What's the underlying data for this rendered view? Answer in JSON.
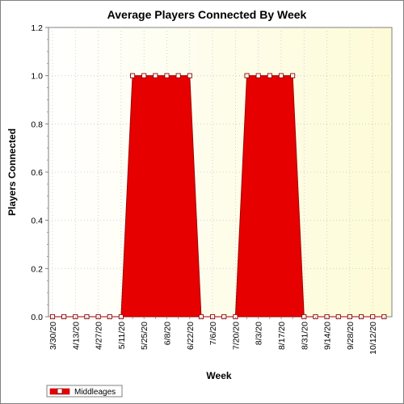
{
  "chart_data": {
    "type": "area",
    "title": "Average Players Connected By Week",
    "xlabel": "Week",
    "ylabel": "Players Connected",
    "ylim": [
      0,
      1.2
    ],
    "yticks": [
      "0.0",
      "0.2",
      "0.4",
      "0.6",
      "0.8",
      "1.0",
      "1.2"
    ],
    "x_tick_labels": [
      "3/30/20",
      "4/13/20",
      "4/27/20",
      "5/11/20",
      "5/25/20",
      "6/8/20",
      "6/22/20",
      "7/6/20",
      "7/20/20",
      "8/3/20",
      "8/17/20",
      "8/31/20",
      "9/14/20",
      "9/28/20",
      "10/12/20"
    ],
    "grid": true,
    "legend_position": "bottom-left",
    "series": [
      {
        "name": "Middleages",
        "color": "#e60000",
        "x": [
          "3/30/20",
          "4/6/20",
          "4/13/20",
          "4/20/20",
          "4/27/20",
          "5/4/20",
          "5/11/20",
          "5/18/20",
          "5/25/20",
          "6/1/20",
          "6/8/20",
          "6/15/20",
          "6/22/20",
          "6/29/20",
          "7/6/20",
          "7/13/20",
          "7/20/20",
          "7/27/20",
          "8/3/20",
          "8/10/20",
          "8/17/20",
          "8/24/20",
          "8/31/20",
          "9/7/20",
          "9/14/20",
          "9/21/20",
          "9/28/20",
          "10/5/20",
          "10/12/20",
          "10/19/20"
        ],
        "values": [
          0,
          0,
          0,
          0,
          0,
          0,
          0,
          1,
          1,
          1,
          1,
          1,
          1,
          0,
          0,
          0,
          0,
          1,
          1,
          1,
          1,
          1,
          0,
          0,
          0,
          0,
          0,
          0,
          0,
          0
        ]
      }
    ]
  }
}
